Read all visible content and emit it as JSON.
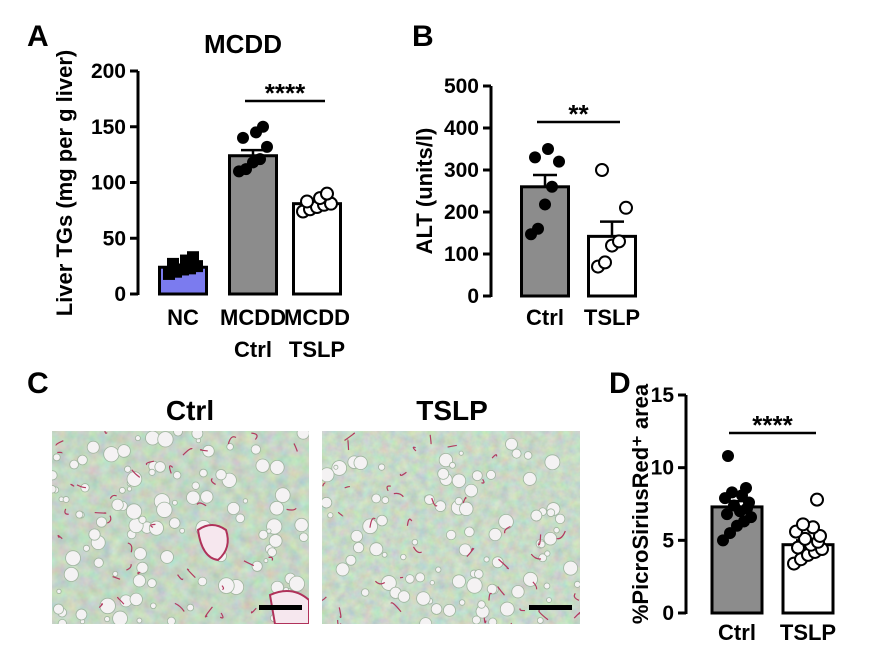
{
  "figure": {
    "panel_labels": [
      "A",
      "B",
      "C",
      "D"
    ]
  },
  "chart_data": [
    {
      "panel": "A",
      "type": "bar",
      "title": "MCDD",
      "ylabel": "Liver TGs (mg per g liver)",
      "ylim": [
        0,
        200
      ],
      "yticks": [
        "0",
        "50",
        "100",
        "150",
        "200"
      ],
      "categories": [
        {
          "line1": "NC",
          "line2": ""
        },
        {
          "line1": "MCDD",
          "line2": "Ctrl"
        },
        {
          "line1": "MCDD",
          "line2": "TSLP"
        }
      ],
      "bars": [
        {
          "name": "NC",
          "value": 24,
          "sem": 2,
          "fill": "#7b7bef",
          "marker": "square",
          "points": [
            18,
            20,
            22,
            23,
            25,
            27,
            30,
            33
          ]
        },
        {
          "name": "MCDD Ctrl",
          "value": 124,
          "sem": 5,
          "fill": "#8c8c8c",
          "marker": "filled",
          "points": [
            110,
            112,
            118,
            121,
            132,
            140,
            145,
            150
          ]
        },
        {
          "name": "MCDD TSLP",
          "value": 81,
          "sem": 3,
          "fill": "#ffffff",
          "marker": "open",
          "points": [
            74,
            76,
            78,
            80,
            81,
            83,
            86,
            90
          ]
        }
      ],
      "significance": [
        {
          "from": 1,
          "to": 2,
          "label": "****"
        }
      ]
    },
    {
      "panel": "B",
      "type": "bar",
      "title": "",
      "ylabel": "ALT (units/l)",
      "ylim": [
        0,
        500
      ],
      "yticks": [
        "0",
        "100",
        "200",
        "300",
        "400",
        "500"
      ],
      "categories": [
        {
          "line1": "Ctrl",
          "line2": ""
        },
        {
          "line1": "TSLP",
          "line2": ""
        }
      ],
      "bars": [
        {
          "name": "Ctrl",
          "value": 260,
          "sem": 28,
          "fill": "#8c8c8c",
          "marker": "filled",
          "points": [
            147,
            160,
            218,
            260,
            320,
            330,
            350
          ]
        },
        {
          "name": "TSLP",
          "value": 142,
          "sem": 35,
          "fill": "#ffffff",
          "marker": "open",
          "points": [
            70,
            80,
            120,
            130,
            210,
            300
          ]
        }
      ],
      "significance": [
        {
          "from": 0,
          "to": 1,
          "label": "**"
        }
      ]
    },
    {
      "panel": "D",
      "type": "bar",
      "title": "",
      "ylabel": "%PicroSiriusRed⁺ area",
      "ylim": [
        0,
        15
      ],
      "yticks": [
        "0",
        "5",
        "10",
        "15"
      ],
      "categories": [
        {
          "line1": "Ctrl",
          "line2": ""
        },
        {
          "line1": "TSLP",
          "line2": ""
        }
      ],
      "bars": [
        {
          "name": "Ctrl",
          "value": 7.3,
          "sem": 0.4,
          "fill": "#8c8c8c",
          "marker": "filled",
          "points": [
            5.0,
            5.5,
            6.0,
            6.3,
            6.6,
            6.8,
            7.0,
            7.2,
            7.4,
            7.6,
            7.9,
            8.1,
            8.3,
            8.6,
            10.8
          ]
        },
        {
          "name": "TSLP",
          "value": 4.7,
          "sem": 0.3,
          "fill": "#ffffff",
          "marker": "open",
          "points": [
            3.4,
            3.7,
            4.0,
            4.2,
            4.4,
            4.5,
            4.7,
            4.9,
            5.1,
            5.3,
            5.6,
            5.9,
            6.1,
            7.8
          ]
        }
      ],
      "significance": [
        {
          "from": 0,
          "to": 1,
          "label": "****"
        }
      ]
    }
  ],
  "panel_c": {
    "images": [
      {
        "title": "Ctrl",
        "description_color": "#7f9f86"
      },
      {
        "title": "TSLP",
        "description_color": "#8aa78b"
      }
    ],
    "scale_bar_color": "#000000"
  }
}
